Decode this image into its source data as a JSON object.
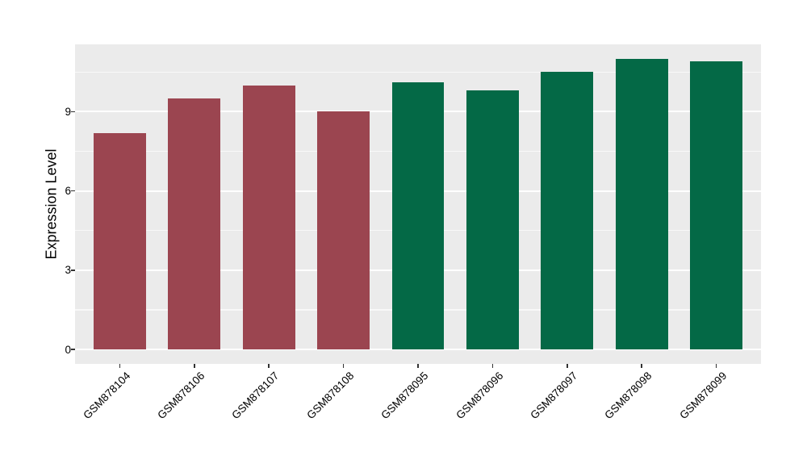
{
  "chart_data": {
    "type": "bar",
    "title": "",
    "xlabel": "",
    "ylabel": "Expression Level",
    "categories": [
      "GSM878104",
      "GSM878106",
      "GSM878107",
      "GSM878108",
      "GSM878095",
      "GSM878096",
      "GSM878097",
      "GSM878098",
      "GSM878099"
    ],
    "values": [
      8.2,
      9.5,
      10.0,
      9.0,
      10.1,
      9.8,
      10.5,
      11.0,
      10.9
    ],
    "bar_colors": [
      "#9B4550",
      "#9B4550",
      "#9B4550",
      "#9B4550",
      "#046946",
      "#046946",
      "#046946",
      "#046946",
      "#046946"
    ],
    "group_colors": {
      "group_a_maroon": "#9B4550",
      "group_b_green": "#046946"
    },
    "y_ticks": [
      0,
      3,
      6,
      9
    ],
    "y_tick_labels": [
      "0",
      "3",
      "6",
      "9"
    ],
    "y_minor_ticks": [
      1.5,
      4.5,
      7.5,
      10.5
    ],
    "ylim": [
      -0.55,
      11.55
    ],
    "grid": true,
    "legend": "none",
    "x_label_angle": 45,
    "bar_width_frac": 0.7,
    "panel_bg": "#EBEBEB",
    "grid_color": "#FFFFFF",
    "tick_color": "#333333",
    "text_color": "#000000"
  }
}
